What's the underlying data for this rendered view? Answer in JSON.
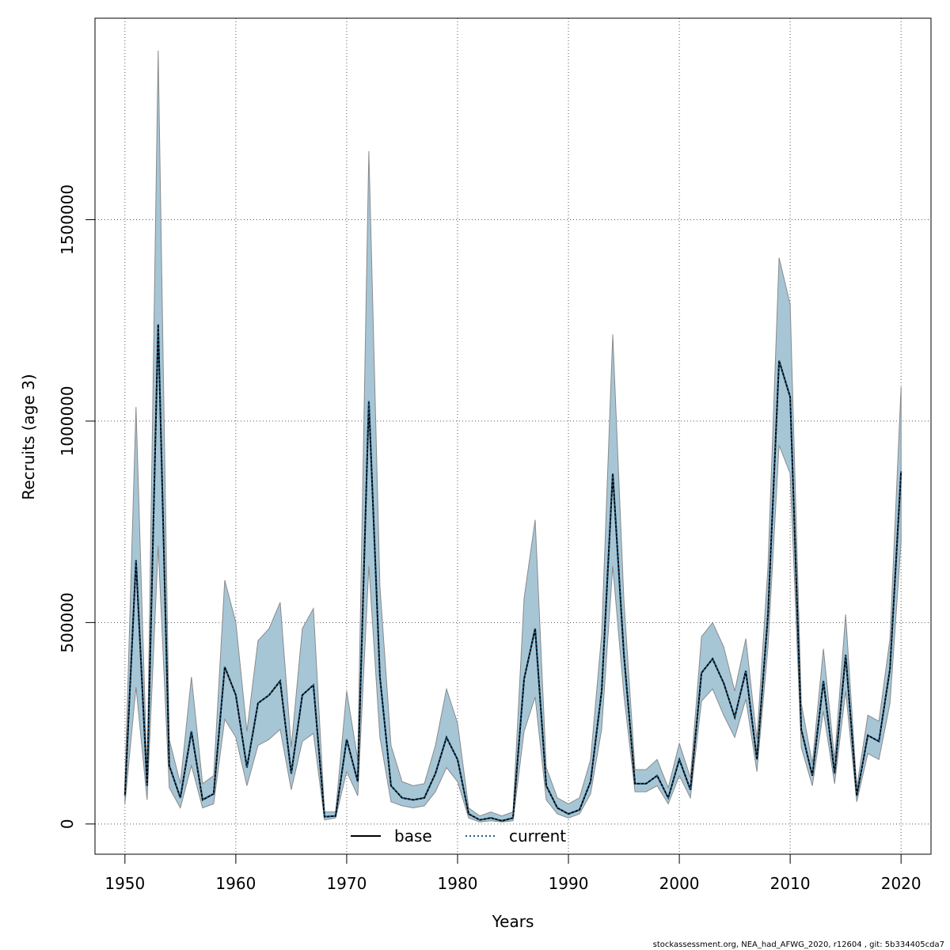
{
  "chart_data": {
    "type": "area",
    "xlabel": "Years",
    "ylabel": "Recruits (age 3)",
    "xlim": [
      1947.3,
      2022.7
    ],
    "ylim": [
      -75000,
      2000000
    ],
    "xticks": [
      1950,
      1960,
      1970,
      1980,
      1990,
      2000,
      2010,
      2020
    ],
    "yticks": [
      0,
      500000,
      1000000,
      1500000
    ],
    "grid": true,
    "legend_position": "bottom-center",
    "colors": {
      "band": "#a6c6d6",
      "band_edge": "#8a8a8a",
      "base": "#000000",
      "current": "#1f5f8b",
      "grid": "#555555"
    },
    "x": [
      1950,
      1951,
      1952,
      1953,
      1954,
      1955,
      1956,
      1957,
      1958,
      1959,
      1960,
      1961,
      1962,
      1963,
      1964,
      1965,
      1966,
      1967,
      1968,
      1969,
      1970,
      1971,
      1972,
      1973,
      1974,
      1975,
      1976,
      1977,
      1978,
      1979,
      1980,
      1981,
      1982,
      1983,
      1984,
      1985,
      1986,
      1987,
      1988,
      1989,
      1990,
      1991,
      1992,
      1993,
      1994,
      1995,
      1996,
      1997,
      1998,
      1999,
      2000,
      2001,
      2002,
      2003,
      2004,
      2005,
      2006,
      2007,
      2008,
      2009,
      2010,
      2011,
      2012,
      2013,
      2014,
      2015,
      2016,
      2017,
      2018,
      2019,
      2020
    ],
    "band_upper": [
      100000,
      1035000,
      120000,
      1920000,
      210000,
      100000,
      365000,
      100000,
      120000,
      605000,
      500000,
      230000,
      455000,
      485000,
      550000,
      190000,
      485000,
      535000,
      30000,
      30000,
      330000,
      160000,
      1670000,
      590000,
      195000,
      105000,
      95000,
      100000,
      195000,
      335000,
      250000,
      40000,
      20000,
      30000,
      20000,
      30000,
      560000,
      755000,
      140000,
      65000,
      50000,
      65000,
      160000,
      470000,
      1215000,
      555000,
      135000,
      135000,
      160000,
      90000,
      200000,
      115000,
      465000,
      500000,
      440000,
      330000,
      460000,
      210000,
      640000,
      1405000,
      1290000,
      300000,
      150000,
      435000,
      160000,
      520000,
      90000,
      270000,
      255000,
      460000,
      1085000
    ],
    "band_lower": [
      50000,
      340000,
      60000,
      690000,
      90000,
      40000,
      145000,
      40000,
      50000,
      260000,
      215000,
      95000,
      195000,
      210000,
      235000,
      85000,
      205000,
      225000,
      10000,
      15000,
      130000,
      70000,
      640000,
      215000,
      55000,
      45000,
      40000,
      45000,
      80000,
      140000,
      105000,
      15000,
      5000,
      8000,
      5000,
      8000,
      230000,
      315000,
      60000,
      25000,
      15000,
      25000,
      75000,
      235000,
      640000,
      320000,
      80000,
      80000,
      95000,
      50000,
      120000,
      65000,
      305000,
      335000,
      270000,
      215000,
      310000,
      130000,
      440000,
      940000,
      870000,
      190000,
      95000,
      280000,
      100000,
      330000,
      55000,
      175000,
      160000,
      300000,
      700000
    ],
    "series": [
      {
        "name": "base",
        "values": [
          70000,
          655000,
          95000,
          1240000,
          145000,
          65000,
          230000,
          60000,
          75000,
          390000,
          320000,
          140000,
          300000,
          320000,
          355000,
          125000,
          320000,
          345000,
          18000,
          20000,
          210000,
          105000,
          1050000,
          365000,
          95000,
          65000,
          60000,
          65000,
          125000,
          215000,
          160000,
          25000,
          10000,
          15000,
          8000,
          15000,
          360000,
          485000,
          95000,
          40000,
          25000,
          35000,
          105000,
          330000,
          870000,
          420000,
          100000,
          100000,
          120000,
          65000,
          160000,
          85000,
          375000,
          410000,
          350000,
          265000,
          380000,
          160000,
          520000,
          1150000,
          1060000,
          235000,
          120000,
          355000,
          125000,
          420000,
          70000,
          220000,
          205000,
          385000,
          875000
        ]
      },
      {
        "name": "current",
        "values": [
          70000,
          655000,
          95000,
          1240000,
          145000,
          65000,
          230000,
          60000,
          75000,
          390000,
          320000,
          140000,
          300000,
          320000,
          355000,
          125000,
          320000,
          345000,
          18000,
          20000,
          210000,
          105000,
          1050000,
          365000,
          95000,
          65000,
          60000,
          65000,
          125000,
          215000,
          160000,
          25000,
          10000,
          15000,
          8000,
          15000,
          360000,
          485000,
          95000,
          40000,
          25000,
          35000,
          105000,
          330000,
          870000,
          420000,
          100000,
          100000,
          120000,
          65000,
          160000,
          85000,
          375000,
          410000,
          350000,
          265000,
          380000,
          160000,
          520000,
          1150000,
          1060000,
          235000,
          120000,
          355000,
          125000,
          420000,
          70000,
          220000,
          205000,
          385000,
          875000
        ]
      }
    ],
    "footer_text": "stockassessment.org, NEA_had_AFWG_2020, r12604 , git: 5b334405cda7"
  }
}
